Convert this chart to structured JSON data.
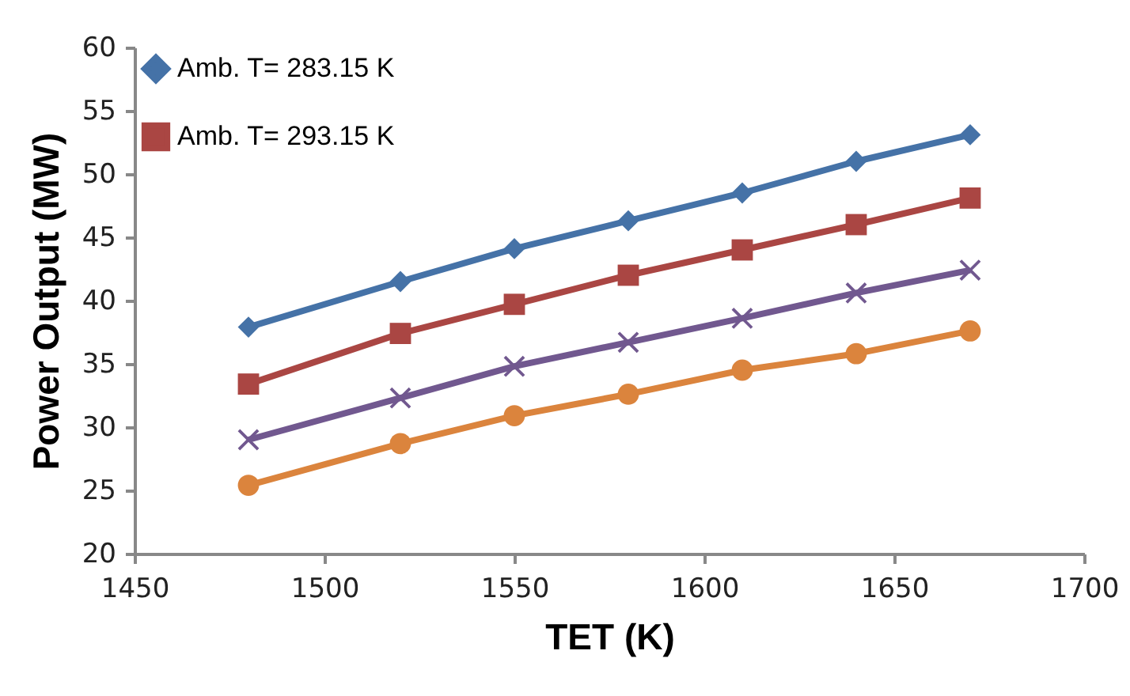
{
  "chart_data": {
    "type": "line",
    "xlabel": "TET (K)",
    "ylabel": "Power Output (MW)",
    "x": [
      1480,
      1520,
      1550,
      1580,
      1610,
      1640,
      1670
    ],
    "series": [
      {
        "name": "Amb. T= 283.15 K",
        "color": "#4572a7",
        "marker": "diamond",
        "values": [
          37.9,
          41.5,
          44.1,
          46.3,
          48.5,
          51.0,
          53.1
        ]
      },
      {
        "name": "Amb. T= 293.15 K",
        "color": "#aa4643",
        "marker": "square",
        "values": [
          33.4,
          37.4,
          39.7,
          42.0,
          44.0,
          46.0,
          48.1
        ]
      },
      {
        "color": "#71588f",
        "marker": "cross",
        "values": [
          29.0,
          32.3,
          34.8,
          36.7,
          38.6,
          40.6,
          42.4
        ]
      },
      {
        "color": "#db843d",
        "marker": "circle",
        "values": [
          25.4,
          28.7,
          30.9,
          32.6,
          34.5,
          35.8,
          37.6
        ]
      }
    ],
    "xlim": [
      1450,
      1700
    ],
    "xticks": [
      1450,
      1500,
      1550,
      1600,
      1650,
      1700
    ],
    "ylim": [
      20,
      60
    ],
    "yticks": [
      20,
      25,
      30,
      35,
      40,
      45,
      50,
      55,
      60
    ],
    "grid": false,
    "legend": "top left"
  }
}
